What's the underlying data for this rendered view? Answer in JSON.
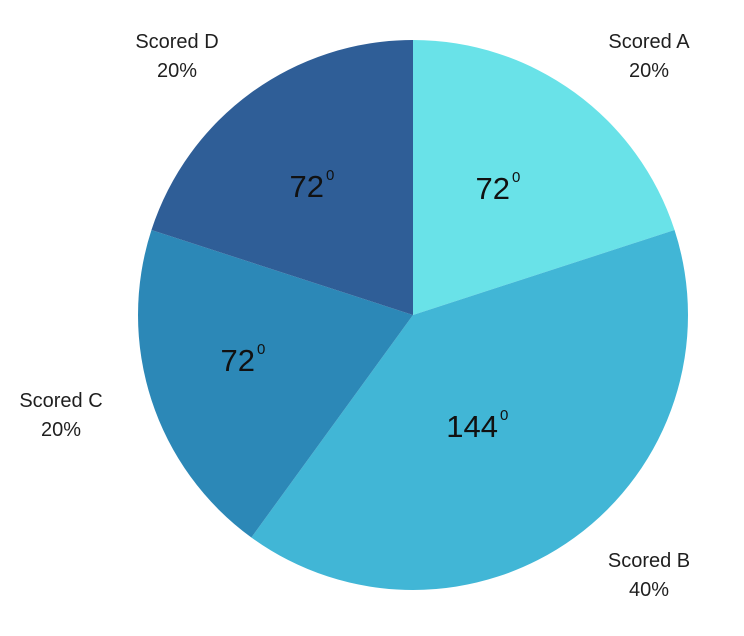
{
  "chart_data": {
    "type": "pie",
    "title": "",
    "start_angle_deg": 0,
    "direction": "clockwise",
    "slices": [
      {
        "label": "Scored A",
        "value": 20,
        "percent_label": "20%",
        "angle_value": "72",
        "angle_unit": "0",
        "color": "#69e2e8"
      },
      {
        "label": "Scored B",
        "value": 40,
        "percent_label": "40%",
        "angle_value": "144",
        "angle_unit": "0",
        "color": "#41b6d6"
      },
      {
        "label": "Scored C",
        "value": 20,
        "percent_label": "20%",
        "angle_value": "72",
        "angle_unit": "0",
        "color": "#2c88b7"
      },
      {
        "label": "Scored D",
        "value": 20,
        "percent_label": "20%",
        "angle_value": "72",
        "angle_unit": "0",
        "color": "#2f5e97"
      }
    ]
  }
}
